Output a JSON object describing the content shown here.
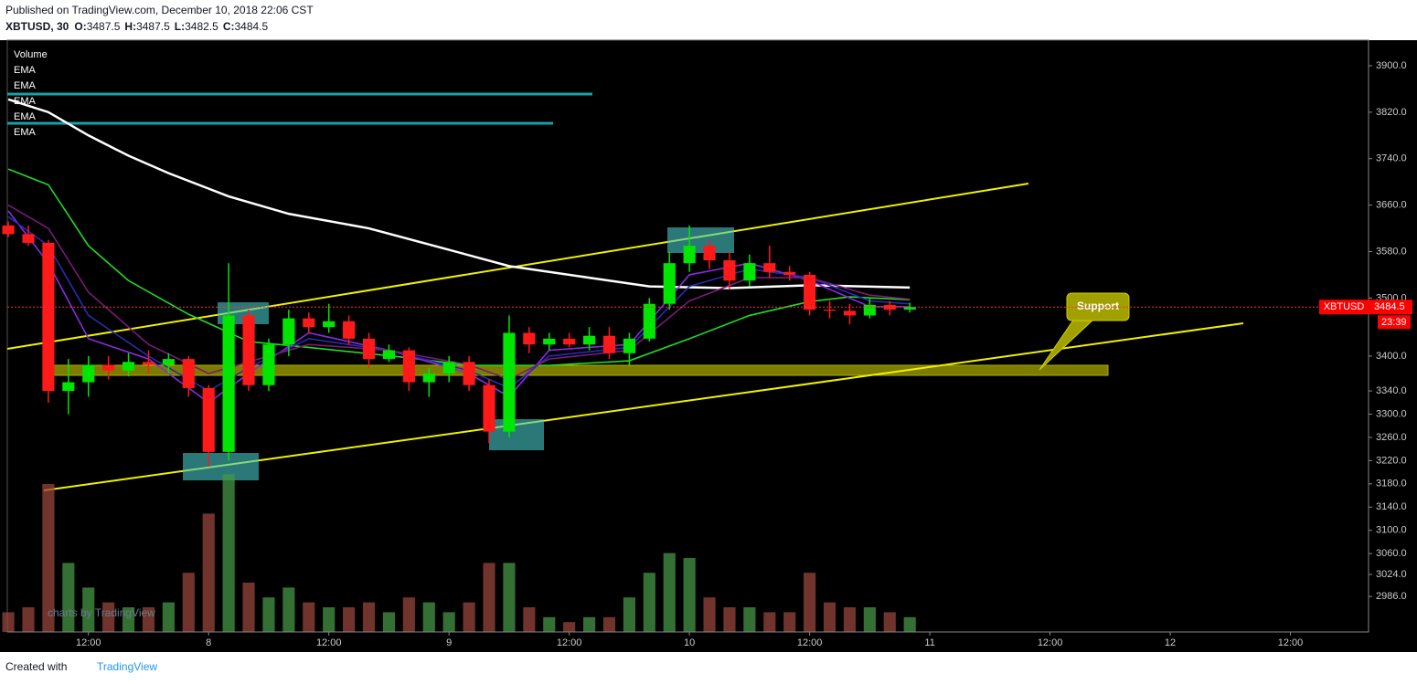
{
  "chart_data": {
    "type": "candlestick",
    "published": "Published on TradingView.com, December 10, 2018 22:06 CST",
    "symbol": "XBTUSD, 30",
    "ohlc_labels": [
      "O:",
      "H:",
      "L:",
      "C:"
    ],
    "ohlc_values": [
      3487.5,
      3487.5,
      3482.5,
      3484.5
    ],
    "price_label": "XBTUSD",
    "last_price": 3484.5,
    "countdown": "23:39",
    "annotation": "Support",
    "watermark": "charts by TradingView",
    "footer": [
      "Created with",
      "TradingView"
    ],
    "xlim": [
      3.9,
      139.8
    ],
    "xticks": [
      {
        "value": 12,
        "label": "12:00"
      },
      {
        "value": 24,
        "label": "8"
      },
      {
        "value": 36,
        "label": "12:00"
      },
      {
        "value": 48,
        "label": "9"
      },
      {
        "value": 60,
        "label": "12:00"
      },
      {
        "value": 72,
        "label": "10"
      },
      {
        "value": 84,
        "label": "12:00"
      },
      {
        "value": 96,
        "label": "11"
      },
      {
        "value": 108,
        "label": "12:00"
      },
      {
        "value": 120,
        "label": "12"
      },
      {
        "value": 132,
        "label": "12:00"
      }
    ],
    "ylim": [
      2925,
      3944
    ],
    "yticks": [
      {
        "value": 3900,
        "label": "3900.0"
      },
      {
        "value": 3820,
        "label": "3820.0"
      },
      {
        "value": 3740,
        "label": "3740.0"
      },
      {
        "value": 3660,
        "label": "3660.0"
      },
      {
        "value": 3580,
        "label": "3580.0"
      },
      {
        "value": 3500,
        "label": "3500.0"
      },
      {
        "value": 3400,
        "label": "3400.0"
      },
      {
        "value": 3340,
        "label": "3340.0"
      },
      {
        "value": 3300,
        "label": "3300.0"
      },
      {
        "value": 3260,
        "label": "3260.0"
      },
      {
        "value": 3220,
        "label": "3220.0"
      },
      {
        "value": 3180,
        "label": "3180.0"
      },
      {
        "value": 3140,
        "label": "3140.0"
      },
      {
        "value": 3100,
        "label": "3100.0"
      },
      {
        "value": 3060,
        "label": "3060.0"
      },
      {
        "value": 3024,
        "label": "3024.0"
      },
      {
        "value": 2986,
        "label": "2986.0"
      }
    ],
    "up_color": "#00e600",
    "down_color": "#ff1a1a",
    "candles": {
      "x": [
        4,
        6,
        8,
        10,
        12,
        14,
        16,
        18,
        20,
        22,
        24,
        26,
        28,
        30,
        32,
        34,
        36,
        38,
        40,
        42,
        44,
        46,
        48,
        50,
        52,
        54,
        56,
        58,
        60,
        62,
        64,
        66,
        68,
        70,
        72,
        74,
        76,
        78,
        80,
        82,
        84,
        86,
        88,
        90,
        92,
        94
      ],
      "open": [
        3625,
        3610,
        3595,
        3340,
        3355,
        3385,
        3375,
        3390,
        3385,
        3395,
        3345,
        3235,
        3470,
        3350,
        3420,
        3465,
        3450,
        3460,
        3430,
        3395,
        3410,
        3355,
        3370,
        3390,
        3350,
        3270,
        3440,
        3420,
        3430,
        3420,
        3435,
        3405,
        3430,
        3490,
        3560,
        3590,
        3565,
        3530,
        3560,
        3545,
        3540,
        3480,
        3478,
        3470,
        3488,
        3480
      ],
      "high": [
        3632,
        3625,
        3600,
        3395,
        3400,
        3400,
        3405,
        3410,
        3405,
        3400,
        3350,
        3560,
        3480,
        3430,
        3480,
        3475,
        3490,
        3470,
        3440,
        3420,
        3415,
        3380,
        3400,
        3400,
        3360,
        3470,
        3450,
        3440,
        3440,
        3450,
        3450,
        3440,
        3500,
        3580,
        3625,
        3600,
        3580,
        3575,
        3590,
        3555,
        3545,
        3495,
        3490,
        3500,
        3495,
        3492
      ],
      "low": [
        3605,
        3590,
        3320,
        3300,
        3330,
        3360,
        3365,
        3370,
        3370,
        3330,
        3210,
        3220,
        3340,
        3340,
        3400,
        3440,
        3440,
        3420,
        3380,
        3390,
        3340,
        3330,
        3355,
        3340,
        3250,
        3260,
        3405,
        3410,
        3415,
        3410,
        3395,
        3385,
        3425,
        3480,
        3545,
        3550,
        3515,
        3520,
        3535,
        3530,
        3470,
        3465,
        3455,
        3465,
        3470,
        3475
      ],
      "close": [
        3610,
        3595,
        3340,
        3355,
        3385,
        3375,
        3390,
        3385,
        3395,
        3345,
        3235,
        3470,
        3350,
        3420,
        3465,
        3450,
        3460,
        3430,
        3395,
        3410,
        3355,
        3370,
        3390,
        3350,
        3270,
        3440,
        3420,
        3430,
        3420,
        3435,
        3405,
        3430,
        3490,
        3560,
        3590,
        3565,
        3530,
        3560,
        3545,
        3540,
        3480,
        3478,
        3470,
        3488,
        3480,
        3484.5
      ]
    },
    "volume": {
      "name": "Volume",
      "lim": [
        0,
        600
      ],
      "up_color": "rgba(70,150,70,0.75)",
      "down_color": "rgba(150,70,60,0.75)",
      "values": [
        20,
        25,
        150,
        70,
        45,
        30,
        25,
        25,
        30,
        60,
        120,
        160,
        50,
        35,
        45,
        30,
        25,
        25,
        30,
        20,
        35,
        30,
        20,
        30,
        70,
        70,
        25,
        15,
        10,
        15,
        15,
        35,
        60,
        80,
        75,
        35,
        25,
        25,
        20,
        20,
        60,
        30,
        25,
        25,
        20,
        15
      ]
    },
    "series": [
      {
        "name": "EMA",
        "color": "#ffffff",
        "x": [
          4,
          8,
          12,
          16,
          20,
          26,
          32,
          40,
          48,
          54,
          62,
          68,
          76,
          84,
          94
        ],
        "values": [
          3842,
          3820,
          3780,
          3745,
          3715,
          3675,
          3645,
          3620,
          3583,
          3555,
          3535,
          3520,
          3517,
          3522,
          3518
        ]
      },
      {
        "name": "EMA",
        "color": "#22dd22",
        "x": [
          4,
          8,
          12,
          16,
          22,
          28,
          34,
          44,
          50,
          58,
          66,
          72,
          78,
          84,
          88,
          94
        ],
        "values": [
          3722,
          3695,
          3590,
          3530,
          3472,
          3425,
          3415,
          3397,
          3384,
          3384,
          3392,
          3430,
          3470,
          3494,
          3502,
          3497
        ]
      },
      {
        "name": "EMA",
        "color": "#8a2be2",
        "x": [
          4,
          8,
          12,
          18,
          24,
          28,
          34,
          42,
          50,
          54,
          58,
          66,
          72,
          78,
          84,
          90,
          94
        ],
        "values": [
          3650,
          3560,
          3430,
          3395,
          3320,
          3370,
          3440,
          3410,
          3370,
          3330,
          3410,
          3420,
          3540,
          3560,
          3530,
          3485,
          3485
        ]
      },
      {
        "name": "EMA",
        "color": "#2a2ab0",
        "x": [
          4,
          8,
          12,
          18,
          24,
          28,
          34,
          42,
          50,
          54,
          58,
          66,
          72,
          78,
          84,
          90,
          94
        ],
        "values": [
          3640,
          3590,
          3470,
          3400,
          3340,
          3380,
          3430,
          3410,
          3375,
          3345,
          3400,
          3415,
          3520,
          3550,
          3535,
          3495,
          3490
        ]
      },
      {
        "name": "EMA",
        "color": "#7a1a7a",
        "x": [
          4,
          8,
          12,
          18,
          24,
          28,
          34,
          42,
          50,
          54,
          58,
          66,
          72,
          78,
          84,
          90,
          94
        ],
        "values": [
          3660,
          3620,
          3510,
          3420,
          3370,
          3390,
          3420,
          3410,
          3385,
          3360,
          3395,
          3410,
          3495,
          3535,
          3535,
          3505,
          3498
        ]
      }
    ]
  }
}
